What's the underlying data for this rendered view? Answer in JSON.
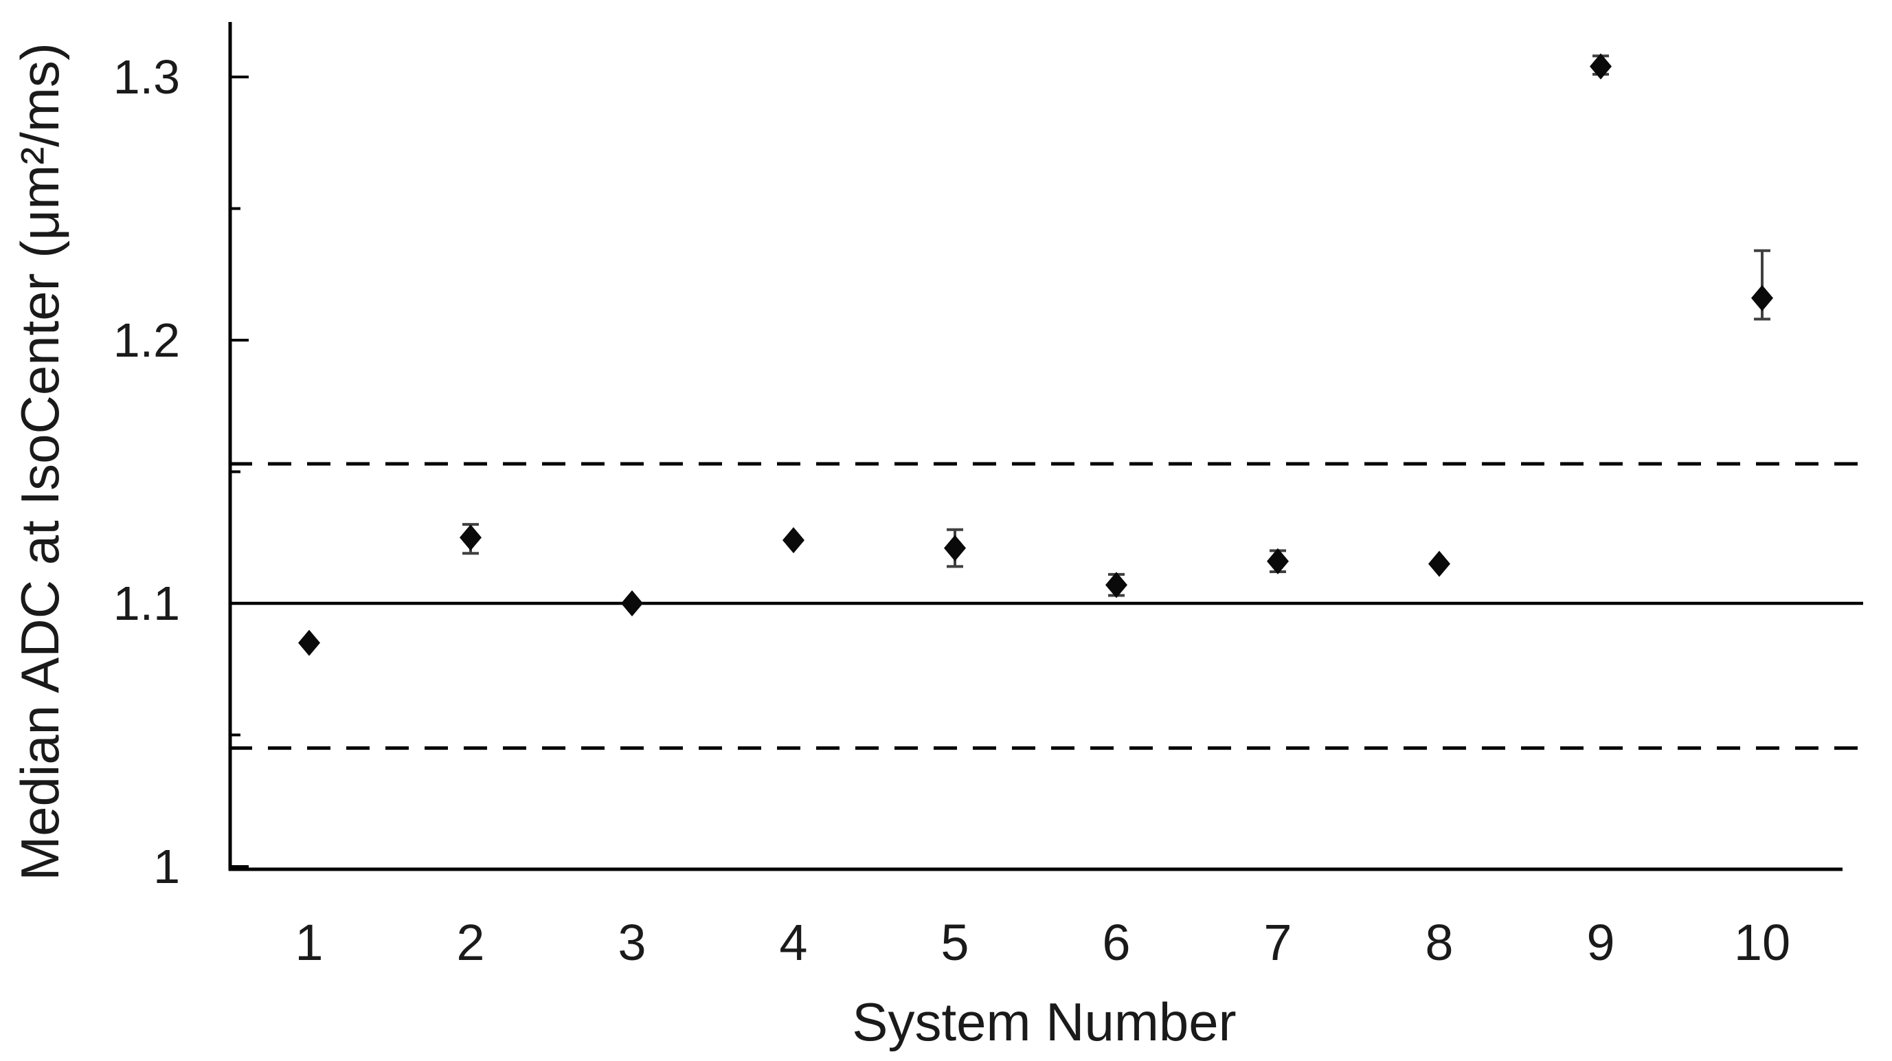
{
  "chart_data": {
    "type": "scatter",
    "title": "",
    "xlabel": "System Number",
    "ylabel": "Median ADC at IsoCenter (μm²/ms)",
    "x": [
      1,
      2,
      3,
      4,
      5,
      6,
      7,
      8,
      9,
      10
    ],
    "x_tick_labels": [
      "1",
      "2",
      "3",
      "4",
      "5",
      "6",
      "7",
      "8",
      "9",
      "10"
    ],
    "y": [
      1.085,
      1.125,
      1.1,
      1.124,
      1.121,
      1.107,
      1.116,
      1.115,
      1.304,
      1.216
    ],
    "err_up": [
      0,
      0.005,
      0,
      0,
      0.007,
      0.004,
      0.004,
      0,
      0.004,
      0.018
    ],
    "err_down": [
      0,
      0.006,
      0,
      0,
      0.007,
      0.004,
      0.004,
      0,
      0.003,
      0.008
    ],
    "ref_lines": {
      "mean": 1.1,
      "upper_limit": 1.153,
      "lower_limit": 1.045,
      "mean_style": "solid",
      "limit_style": "dashed"
    },
    "y_ticks_major": [
      1.0,
      1.1,
      1.2,
      1.3
    ],
    "y_tick_labels": [
      "1",
      "1.1",
      "1.2",
      "1.3"
    ],
    "y_ticks_minor": [
      1.05,
      1.15,
      1.25
    ],
    "xlim": [
      0.5,
      10.6
    ],
    "ylim": [
      1.0,
      1.32
    ],
    "grid": "off",
    "legend": "none",
    "marker": "diamond",
    "colors": {
      "marker": "#0a0a0a",
      "error_bar": "#404040",
      "axis": "#000000",
      "ref_line": "#000000",
      "text": "#1a1a1a"
    }
  }
}
